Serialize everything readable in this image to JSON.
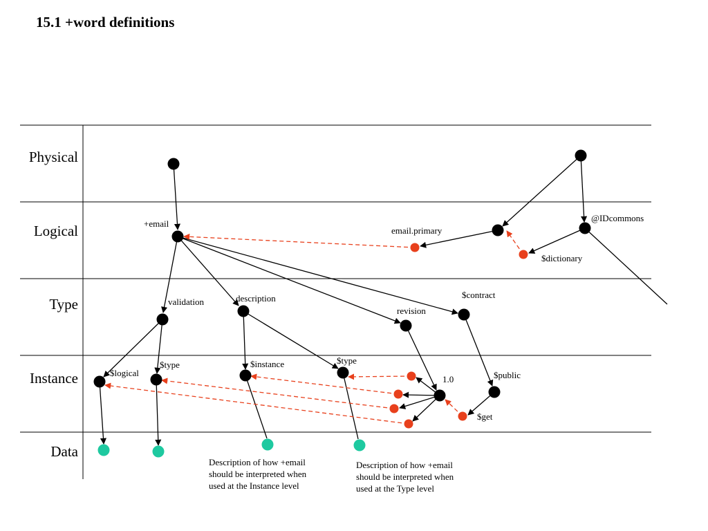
{
  "title": "15.1 +word definitions",
  "layers": [
    "Physical",
    "Logical",
    "Type",
    "Instance",
    "Data"
  ],
  "colors": {
    "node": "#000000",
    "reference_node": "#e8401c",
    "data_node": "#1ec9a0",
    "reference_edge": "#e8401c",
    "edge": "#000000",
    "grid": "#000000"
  },
  "labels": {
    "email": "+email",
    "email_primary": "email.primary",
    "idcommons": "@IDcommons",
    "dictionary": "$dictionary",
    "validation": "validation",
    "description": "description",
    "revision": "revision",
    "contract": "$contract",
    "logical": "$logical",
    "type_a": "$type",
    "instance": "$instance",
    "type_b": "$type",
    "version": "1.0",
    "public": "$public",
    "get": "$get"
  },
  "notes": {
    "instance_level": [
      "Description of how +email",
      "should be interpreted when",
      "used at the Instance level"
    ],
    "type_level": [
      "Description of how +email",
      "should be interpreted when",
      "used at the Type level"
    ]
  }
}
